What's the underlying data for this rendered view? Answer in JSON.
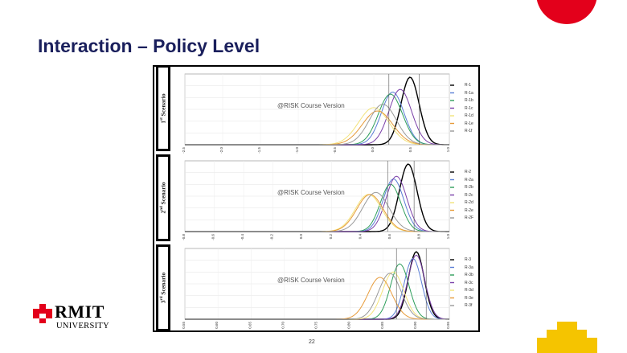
{
  "slide": {
    "title": "Interaction – Policy Level",
    "page_number": "22",
    "accent_red": "#e3001b",
    "accent_yellow": "#f5c400",
    "title_color": "#1a1f5c"
  },
  "logo": {
    "name": "RMIT",
    "sub": "UNIVERSITY"
  },
  "scenarios": [
    {
      "label_num": "1",
      "label_sup": "st",
      "label_rest": " Scenario"
    },
    {
      "label_num": "2",
      "label_sup": "nd",
      "label_rest": " Scenario"
    },
    {
      "label_num": "3",
      "label_sup": "rd",
      "label_rest": " Scenario"
    }
  ],
  "chart_data": [
    {
      "type": "line",
      "watermark": "@RISK Course Version",
      "xlim": [
        -2.5,
        1.0
      ],
      "x_ticks": [
        "-2.5",
        "-2.0",
        "-1.5",
        "-1.0",
        "-0.5",
        "0.0",
        "0.5",
        "1.0"
      ],
      "markers": [
        0.2,
        0.6
      ],
      "series": [
        {
          "name": "R-1",
          "color": "#000000",
          "peak_x": 0.48,
          "width": 0.12,
          "peak_y": 1.0
        },
        {
          "name": "R-1a",
          "color": "#5b7fd6",
          "peak_x": 0.25,
          "width": 0.15,
          "peak_y": 0.78
        },
        {
          "name": "R-1b",
          "color": "#2e9e5b",
          "peak_x": 0.22,
          "width": 0.16,
          "peak_y": 0.75
        },
        {
          "name": "R-1c",
          "color": "#7a3fa8",
          "peak_x": 0.35,
          "width": 0.15,
          "peak_y": 0.82
        },
        {
          "name": "R-1d",
          "color": "#f3e37a",
          "peak_x": 0.0,
          "width": 0.2,
          "peak_y": 0.55
        },
        {
          "name": "R-1e",
          "color": "#e79b3a",
          "peak_x": 0.05,
          "width": 0.2,
          "peak_y": 0.5
        },
        {
          "name": "R-1f",
          "color": "#999999",
          "peak_x": 0.12,
          "width": 0.18,
          "peak_y": 0.6
        }
      ]
    },
    {
      "type": "line",
      "watermark": "@RISK Course Version",
      "xlim": [
        -0.8,
        1.0
      ],
      "x_ticks": [
        "-0.8",
        "-0.6",
        "-0.4",
        "-0.2",
        "0.0",
        "0.2",
        "0.4",
        "0.6",
        "0.8",
        "1.0"
      ],
      "markers": [
        0.58,
        0.76
      ],
      "series": [
        {
          "name": "R-2",
          "color": "#000000",
          "peak_x": 0.72,
          "width": 0.06,
          "peak_y": 1.0
        },
        {
          "name": "R-2a",
          "color": "#5b7fd6",
          "peak_x": 0.62,
          "width": 0.07,
          "peak_y": 0.78
        },
        {
          "name": "R-2b",
          "color": "#2e9e5b",
          "peak_x": 0.6,
          "width": 0.07,
          "peak_y": 0.7
        },
        {
          "name": "R-2c",
          "color": "#7a3fa8",
          "peak_x": 0.64,
          "width": 0.07,
          "peak_y": 0.82
        },
        {
          "name": "R-2d",
          "color": "#f3e37a",
          "peak_x": 0.45,
          "width": 0.09,
          "peak_y": 0.55
        },
        {
          "name": "R-2e",
          "color": "#e79b3a",
          "peak_x": 0.46,
          "width": 0.09,
          "peak_y": 0.55
        },
        {
          "name": "R-2F",
          "color": "#999999",
          "peak_x": 0.5,
          "width": 0.09,
          "peak_y": 0.58
        }
      ]
    },
    {
      "type": "line",
      "watermark": "@RISK Course Version",
      "xlim": [
        0.55,
        0.95
      ],
      "x_ticks": [
        "0.55",
        "0.60",
        "0.65",
        "0.70",
        "0.75",
        "0.80",
        "0.85",
        "0.90",
        "0.95"
      ],
      "markers": [
        0.87,
        0.915
      ],
      "series": [
        {
          "name": "R-3",
          "color": "#000000",
          "peak_x": 0.9,
          "width": 0.012,
          "peak_y": 1.0
        },
        {
          "name": "R-3a",
          "color": "#5b7fd6",
          "peak_x": 0.895,
          "width": 0.013,
          "peak_y": 0.9
        },
        {
          "name": "R-3b",
          "color": "#2e9e5b",
          "peak_x": 0.875,
          "width": 0.014,
          "peak_y": 0.82
        },
        {
          "name": "R-3c",
          "color": "#7a3fa8",
          "peak_x": 0.9,
          "width": 0.013,
          "peak_y": 0.95
        },
        {
          "name": "R-3d",
          "color": "#f3e37a",
          "peak_x": 0.865,
          "width": 0.016,
          "peak_y": 0.7
        },
        {
          "name": "R-3e",
          "color": "#e79b3a",
          "peak_x": 0.845,
          "width": 0.018,
          "peak_y": 0.62
        },
        {
          "name": "R-3f",
          "color": "#999999",
          "peak_x": 0.86,
          "width": 0.017,
          "peak_y": 0.68
        }
      ]
    }
  ]
}
